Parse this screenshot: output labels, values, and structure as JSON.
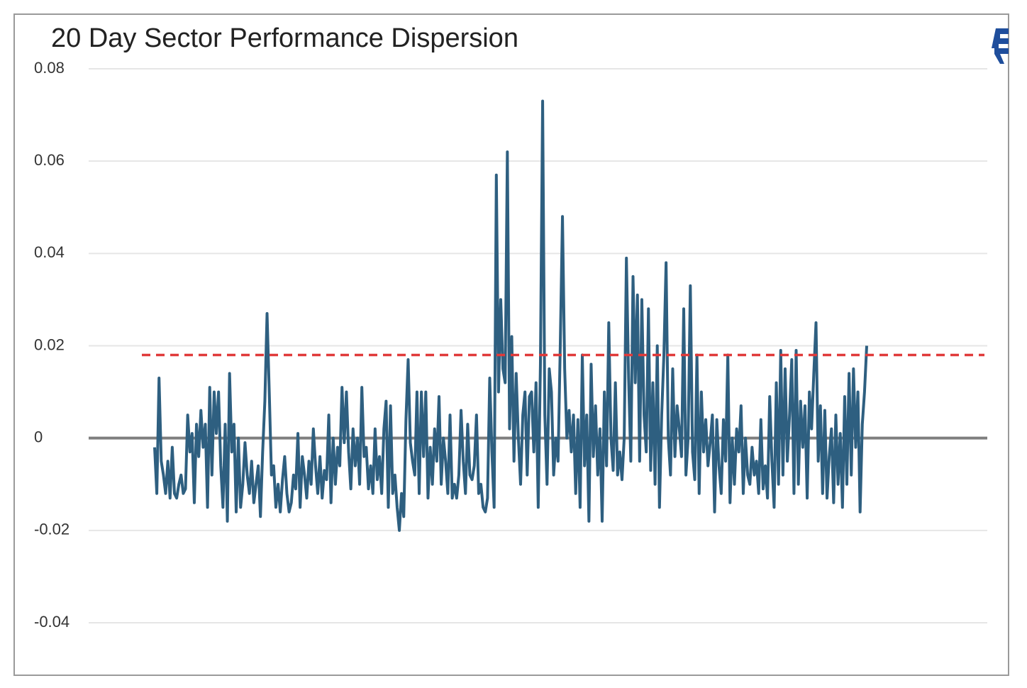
{
  "chart_data": {
    "type": "line",
    "title": "20 Day Sector Performance Dispersion",
    "ylim": [
      -0.04,
      0.08
    ],
    "yticks": [
      0.08,
      0.06,
      0.04,
      0.02,
      0,
      -0.02,
      -0.04
    ],
    "grid": true,
    "reference_line": {
      "value": 0.018,
      "color": "#e03a3a"
    },
    "series": [
      {
        "color": "#2e5f80",
        "values": [
          -0.002,
          -0.012,
          0.013,
          -0.005,
          -0.008,
          -0.012,
          -0.005,
          -0.013,
          -0.002,
          -0.012,
          -0.013,
          -0.01,
          -0.008,
          -0.012,
          -0.011,
          0.005,
          -0.003,
          0.001,
          -0.014,
          0.003,
          -0.004,
          0.006,
          -0.002,
          0.003,
          -0.015,
          0.011,
          -0.008,
          0.01,
          0.001,
          0.01,
          -0.006,
          -0.015,
          0.003,
          -0.018,
          0.014,
          -0.003,
          0.003,
          -0.016,
          0.0,
          -0.015,
          -0.01,
          -0.001,
          -0.008,
          -0.012,
          -0.005,
          -0.014,
          -0.01,
          -0.006,
          -0.017,
          -0.003,
          0.008,
          0.027,
          0.01,
          -0.008,
          -0.006,
          -0.015,
          -0.01,
          -0.016,
          -0.009,
          -0.004,
          -0.012,
          -0.016,
          -0.014,
          -0.008,
          -0.011,
          0.001,
          -0.015,
          -0.004,
          -0.008,
          -0.013,
          -0.005,
          -0.01,
          0.002,
          -0.006,
          -0.012,
          -0.004,
          -0.013,
          -0.007,
          -0.009,
          0.005,
          -0.014,
          0.0,
          -0.01,
          -0.002,
          -0.006,
          0.011,
          -0.001,
          0.01,
          -0.003,
          -0.011,
          0.002,
          -0.006,
          0.0,
          -0.01,
          0.011,
          -0.004,
          -0.002,
          -0.011,
          -0.006,
          -0.012,
          0.002,
          -0.009,
          -0.004,
          -0.012,
          0.002,
          0.008,
          -0.015,
          0.007,
          -0.012,
          -0.008,
          -0.015,
          -0.02,
          -0.012,
          -0.017,
          0.004,
          0.017,
          -0.001,
          -0.005,
          -0.008,
          0.01,
          -0.012,
          0.01,
          -0.004,
          0.01,
          -0.013,
          -0.002,
          -0.01,
          0.002,
          -0.005,
          0.009,
          -0.01,
          0.0,
          -0.005,
          -0.012,
          0.005,
          -0.013,
          -0.01,
          -0.013,
          -0.008,
          0.006,
          -0.005,
          -0.012,
          0.003,
          -0.008,
          -0.009,
          -0.006,
          0.005,
          -0.012,
          -0.01,
          -0.015,
          -0.016,
          -0.013,
          0.013,
          -0.003,
          -0.015,
          0.057,
          0.01,
          0.03,
          0.015,
          0.012,
          0.062,
          0.002,
          0.022,
          -0.005,
          0.014,
          0.0,
          -0.01,
          0.005,
          0.01,
          -0.008,
          0.009,
          0.01,
          -0.003,
          0.012,
          -0.015,
          0.016,
          0.073,
          0.005,
          -0.01,
          0.015,
          0.01,
          -0.008,
          0.0,
          -0.005,
          0.02,
          0.048,
          0.015,
          0.0,
          0.006,
          -0.003,
          0.005,
          -0.012,
          0.004,
          -0.015,
          0.018,
          -0.006,
          0.005,
          -0.018,
          0.016,
          -0.004,
          0.007,
          -0.008,
          0.002,
          -0.018,
          0.01,
          -0.006,
          0.025,
          0.0,
          -0.007,
          0.012,
          -0.008,
          -0.003,
          -0.009,
          0.0,
          0.039,
          0.013,
          -0.005,
          0.035,
          0.012,
          0.031,
          -0.005,
          0.03,
          0.005,
          -0.003,
          0.028,
          -0.007,
          0.012,
          -0.01,
          0.02,
          -0.015,
          0.005,
          0.018,
          0.038,
          0.0,
          -0.008,
          0.015,
          -0.004,
          0.007,
          0.002,
          -0.004,
          0.028,
          -0.008,
          0.0,
          0.033,
          -0.003,
          -0.009,
          0.018,
          -0.012,
          0.01,
          -0.003,
          0.004,
          -0.006,
          -0.001,
          0.005,
          -0.016,
          0.004,
          -0.006,
          -0.012,
          0.004,
          -0.005,
          0.018,
          -0.014,
          0.0,
          -0.01,
          0.002,
          -0.003,
          0.007,
          -0.012,
          0.0,
          -0.008,
          -0.01,
          -0.002,
          -0.008,
          -0.005,
          -0.012,
          0.004,
          -0.011,
          -0.006,
          -0.013,
          0.009,
          -0.005,
          -0.015,
          0.012,
          -0.01,
          0.019,
          -0.008,
          0.015,
          -0.005,
          0.005,
          0.017,
          -0.012,
          0.019,
          -0.01,
          0.008,
          -0.002,
          0.007,
          -0.013,
          0.01,
          0.002,
          0.014,
          0.025,
          -0.005,
          0.007,
          -0.012,
          0.006,
          -0.013,
          -0.004,
          0.002,
          -0.014,
          0.005,
          -0.01,
          0.001,
          -0.015,
          0.009,
          -0.01,
          0.014,
          -0.008,
          0.015,
          -0.002,
          0.01,
          -0.016,
          0.003,
          0.01,
          0.02
        ]
      }
    ]
  }
}
